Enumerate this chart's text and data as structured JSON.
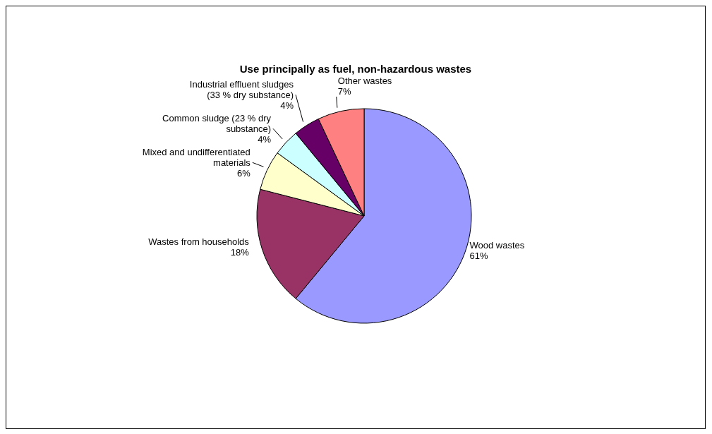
{
  "chart_data": {
    "type": "pie",
    "title": "Use principally as fuel, non-hazardous wastes",
    "categories": [
      "Wood wastes",
      "Wastes from households",
      "Mixed and undifferentiated materials",
      "Common sludge (23 % dry substance)",
      "Industrial effluent sludges (33 % dry substance)",
      "Other wastes"
    ],
    "values": [
      61,
      18,
      6,
      4,
      4,
      7
    ],
    "value_labels": [
      "61%",
      "18%",
      "6%",
      "4%",
      "4%",
      "7%"
    ],
    "colors": [
      "#9999ff",
      "#993366",
      "#ffffcc",
      "#ccffff",
      "#660066",
      "#ff8080"
    ],
    "legend": false
  }
}
